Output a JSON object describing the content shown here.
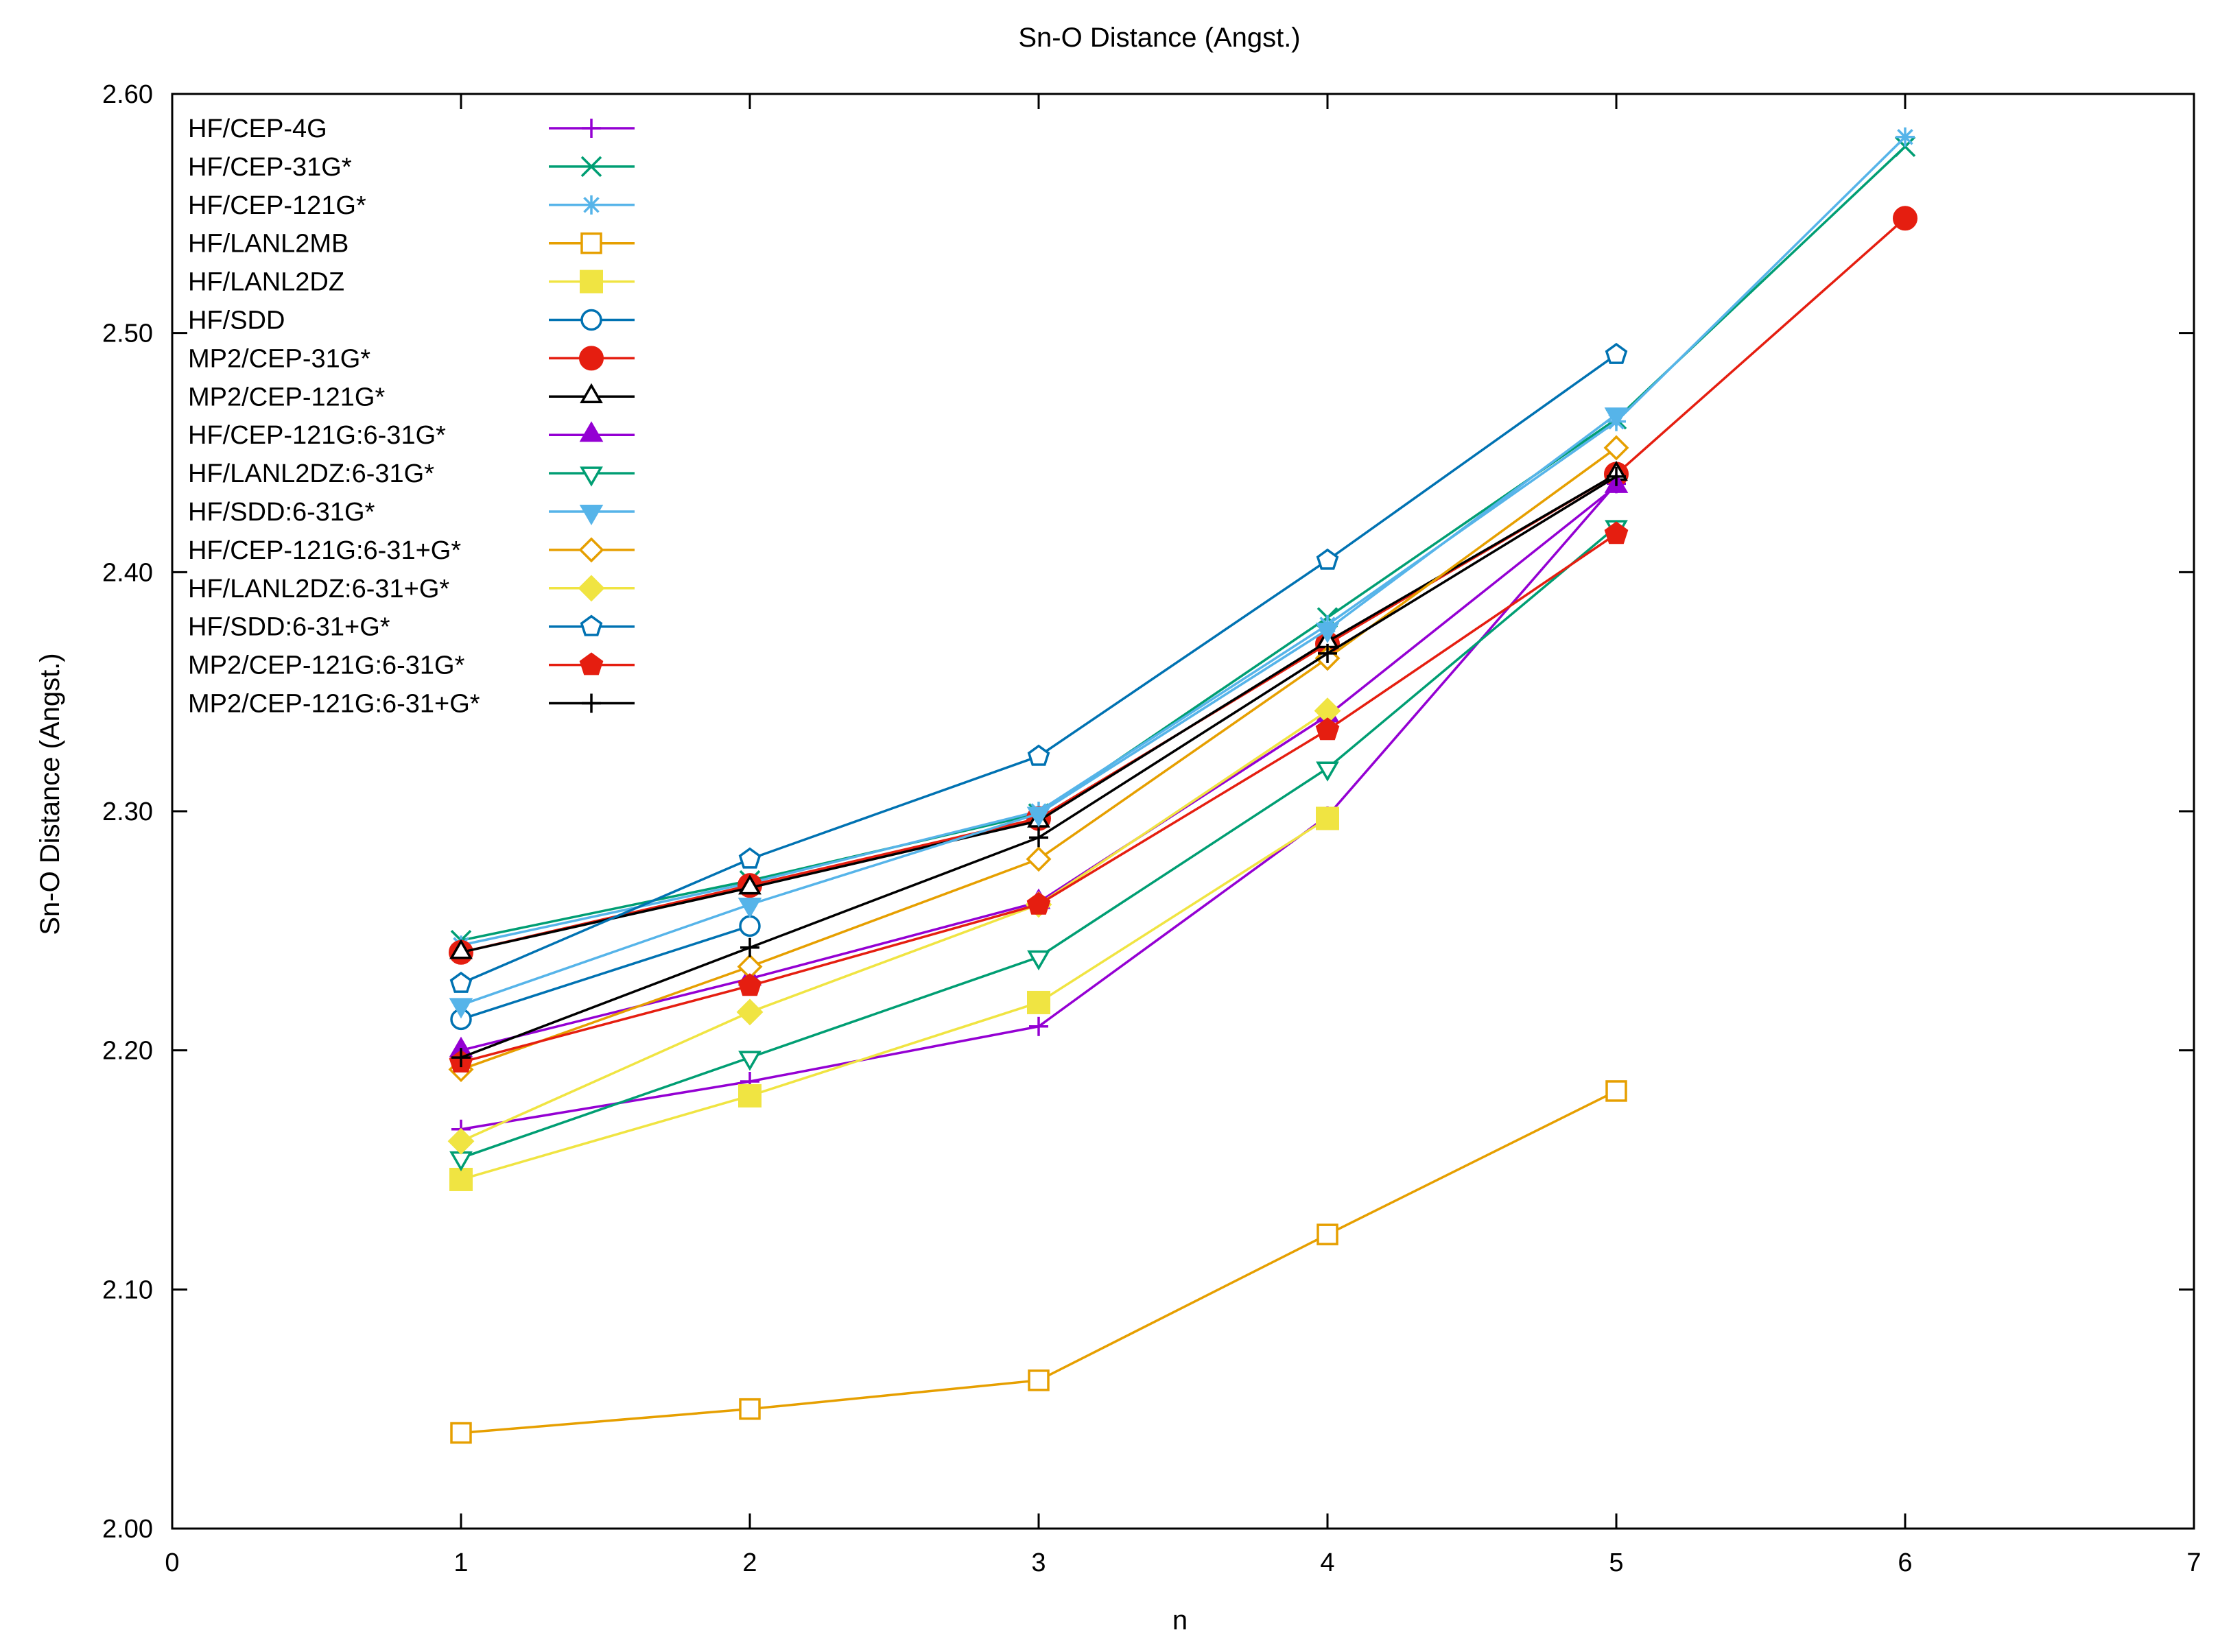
{
  "chart_data": {
    "type": "line",
    "title": "Sn-O Distance (Angst.)",
    "xlabel": "n",
    "ylabel": "Sn-O Distance (Angst.)",
    "xlim": [
      0,
      7
    ],
    "ylim": [
      2.0,
      2.6
    ],
    "xticks": [
      0,
      1,
      2,
      3,
      4,
      5,
      6,
      7
    ],
    "yticks": [
      2.0,
      2.1,
      2.2,
      2.3,
      2.4,
      2.5,
      2.6
    ],
    "xtick_labels": [
      "0",
      "1",
      "2",
      "3",
      "4",
      "5",
      "6",
      "7"
    ],
    "ytick_labels": [
      "2.00",
      "2.10",
      "2.20",
      "2.30",
      "2.40",
      "2.50",
      "2.60"
    ],
    "grid": false,
    "legend_position": "top-left",
    "series": [
      {
        "name": "HF/CEP-4G",
        "color": "#9400d3",
        "marker": "plus",
        "x": [
          1,
          2,
          3,
          4,
          5
        ],
        "values": [
          2.167,
          2.187,
          2.21,
          2.298,
          2.437
        ]
      },
      {
        "name": "HF/CEP-31G*",
        "color": "#009e73",
        "marker": "cross",
        "x": [
          1,
          2,
          3,
          4,
          5,
          6
        ],
        "values": [
          2.246,
          2.271,
          2.299,
          2.381,
          2.464,
          2.578
        ]
      },
      {
        "name": "HF/CEP-121G*",
        "color": "#56b4e9",
        "marker": "star",
        "x": [
          1,
          2,
          3,
          4,
          5,
          6
        ],
        "values": [
          2.244,
          2.27,
          2.3,
          2.378,
          2.463,
          2.582
        ]
      },
      {
        "name": "HF/LANL2MB",
        "color": "#e69f00",
        "marker": "square-open",
        "x": [
          1,
          2,
          3,
          4,
          5
        ],
        "values": [
          2.04,
          2.05,
          2.062,
          2.123,
          2.183
        ]
      },
      {
        "name": "HF/LANL2DZ",
        "color": "#f0e442",
        "marker": "square-filled",
        "x": [
          1,
          2,
          3,
          4
        ],
        "values": [
          2.146,
          2.181,
          2.22,
          2.297
        ]
      },
      {
        "name": "HF/SDD",
        "color": "#0072b2",
        "marker": "circle-open",
        "x": [
          1,
          2
        ],
        "values": [
          2.213,
          2.252
        ]
      },
      {
        "name": "MP2/CEP-31G*",
        "color": "#e51e10",
        "marker": "circle-filled",
        "x": [
          1,
          2,
          3,
          4,
          5,
          6
        ],
        "values": [
          2.241,
          2.269,
          2.297,
          2.37,
          2.441,
          2.548
        ]
      },
      {
        "name": "MP2/CEP-121G*",
        "color": "#000000",
        "marker": "triangle-open",
        "x": [
          1,
          2,
          3,
          4,
          5
        ],
        "values": [
          2.241,
          2.268,
          2.296,
          2.371,
          2.441
        ]
      },
      {
        "name": "HF/CEP-121G:6-31G*",
        "color": "#9400d3",
        "marker": "triangle-filled",
        "x": [
          1,
          2,
          3,
          4,
          5
        ],
        "values": [
          2.2,
          2.23,
          2.262,
          2.34,
          2.436
        ]
      },
      {
        "name": "HF/LANL2DZ:6-31G*",
        "color": "#009e73",
        "marker": "triangle-down-open",
        "x": [
          1,
          2,
          3,
          4,
          5
        ],
        "values": [
          2.155,
          2.197,
          2.239,
          2.318,
          2.419
        ]
      },
      {
        "name": "HF/SDD:6-31G*",
        "color": "#56b4e9",
        "marker": "triangle-down-filled",
        "x": [
          1,
          2,
          3,
          4,
          5
        ],
        "values": [
          2.219,
          2.261,
          2.299,
          2.376,
          2.466
        ]
      },
      {
        "name": "HF/CEP-121G:6-31+G*",
        "color": "#e69f00",
        "marker": "diamond-open",
        "x": [
          1,
          2,
          3,
          4,
          5
        ],
        "values": [
          2.192,
          2.235,
          2.28,
          2.364,
          2.452
        ]
      },
      {
        "name": "HF/LANL2DZ:6-31+G*",
        "color": "#f0e442",
        "marker": "diamond-filled",
        "x": [
          1,
          2,
          3,
          4
        ],
        "values": [
          2.162,
          2.216,
          2.261,
          2.342
        ]
      },
      {
        "name": "HF/SDD:6-31+G*",
        "color": "#0072b2",
        "marker": "pentagon-open",
        "x": [
          1,
          2,
          3,
          4,
          5
        ],
        "values": [
          2.228,
          2.28,
          2.323,
          2.405,
          2.491
        ]
      },
      {
        "name": "MP2/CEP-121G:6-31G*",
        "color": "#e51e10",
        "marker": "pentagon-filled",
        "x": [
          1,
          2,
          3,
          4,
          5
        ],
        "values": [
          2.195,
          2.227,
          2.261,
          2.334,
          2.416
        ]
      },
      {
        "name": "MP2/CEP-121G:6-31+G*",
        "color": "#000000",
        "marker": "plus",
        "x": [
          1,
          2,
          3,
          4,
          5
        ],
        "values": [
          2.197,
          2.243,
          2.289,
          2.366,
          2.44
        ]
      }
    ]
  }
}
